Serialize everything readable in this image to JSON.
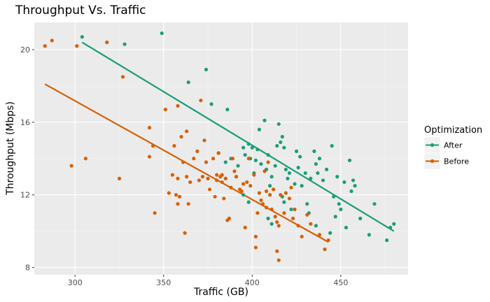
{
  "chart_data": {
    "type": "scatter",
    "title": "Throughput Vs. Traffic",
    "xlabel": "Traffic (GB)",
    "ylabel": "Throughput (Mbps)",
    "xlim": [
      277,
      488
    ],
    "ylim": [
      7.6,
      21.5
    ],
    "x_ticks": [
      300,
      350,
      400,
      450
    ],
    "y_ticks": [
      8,
      12,
      16,
      20
    ],
    "x_tick_labels": [
      "300",
      "350",
      "400",
      "450"
    ],
    "y_tick_labels": [
      "8",
      "12",
      "16",
      "20"
    ],
    "grid": true,
    "legend": {
      "title": "Optimization",
      "placement": "right"
    },
    "series": [
      {
        "name": "After",
        "color": "#1b9e77",
        "fit": {
          "x": [
            304,
            480
          ],
          "y": [
            20.4,
            10.0
          ]
        },
        "points": [
          [
            304,
            20.7
          ],
          [
            318,
            20.4
          ],
          [
            328,
            20.3
          ],
          [
            349,
            20.9
          ],
          [
            364,
            18.2
          ],
          [
            374,
            18.9
          ],
          [
            377,
            17.0
          ],
          [
            386,
            16.7
          ],
          [
            395,
            14.6
          ],
          [
            396,
            14.2
          ],
          [
            398,
            14.8
          ],
          [
            399,
            14.0
          ],
          [
            400,
            14.6
          ],
          [
            401,
            13.2
          ],
          [
            402,
            13.9
          ],
          [
            403,
            14.5
          ],
          [
            404,
            15.6
          ],
          [
            405,
            13.7
          ],
          [
            407,
            16.1
          ],
          [
            408,
            13.4
          ],
          [
            409,
            14.2
          ],
          [
            410,
            12.5
          ],
          [
            411,
            13.0
          ],
          [
            412,
            12.3
          ],
          [
            413,
            13.6
          ],
          [
            414,
            14.7
          ],
          [
            415,
            15.9
          ],
          [
            416,
            14.9
          ],
          [
            417,
            15.2
          ],
          [
            418,
            14.6
          ],
          [
            419,
            13.4
          ],
          [
            420,
            12.9
          ],
          [
            421,
            13.2
          ],
          [
            422,
            11.2
          ],
          [
            424,
            12.6
          ],
          [
            425,
            14.4
          ],
          [
            426,
            13.5
          ],
          [
            427,
            14.1
          ],
          [
            428,
            12.5
          ],
          [
            430,
            13.2
          ],
          [
            432,
            11.0
          ],
          [
            433,
            12.9
          ],
          [
            435,
            14.4
          ],
          [
            436,
            13.7
          ],
          [
            437,
            13.2
          ],
          [
            438,
            14.0
          ],
          [
            440,
            12.8
          ],
          [
            442,
            13.4
          ],
          [
            445,
            14.7
          ],
          [
            446,
            11.9
          ],
          [
            448,
            13.0
          ],
          [
            449,
            11.5
          ],
          [
            450,
            11.2
          ],
          [
            452,
            12.7
          ],
          [
            453,
            10.2
          ],
          [
            455,
            13.9
          ],
          [
            456,
            12.2
          ],
          [
            457,
            12.8
          ],
          [
            458,
            12.5
          ],
          [
            461,
            10.7
          ],
          [
            466,
            9.8
          ],
          [
            469,
            11.5
          ],
          [
            476,
            9.5
          ],
          [
            478,
            10.2
          ],
          [
            480,
            10.4
          ],
          [
            395,
            12.0
          ],
          [
            398,
            11.6
          ],
          [
            409,
            10.7
          ],
          [
            411,
            10.4
          ],
          [
            417,
            11.9
          ],
          [
            418,
            11.6
          ],
          [
            431,
            11.5
          ],
          [
            436,
            10.3
          ],
          [
            444,
            9.9
          ],
          [
            447,
            10.8
          ],
          [
            381,
            14.3
          ],
          [
            388,
            14.0
          ],
          [
            392,
            13.6
          ],
          [
            385,
            13.8
          ]
        ]
      },
      {
        "name": "Before",
        "color": "#d95f02",
        "fit": {
          "x": [
            283,
            443
          ],
          "y": [
            18.1,
            9.4
          ]
        },
        "points": [
          [
            283,
            20.2
          ],
          [
            287,
            20.5
          ],
          [
            301,
            20.2
          ],
          [
            318,
            20.4
          ],
          [
            298,
            13.6
          ],
          [
            306,
            14.0
          ],
          [
            325,
            12.9
          ],
          [
            327,
            18.5
          ],
          [
            342,
            15.7
          ],
          [
            342,
            14.1
          ],
          [
            344,
            14.7
          ],
          [
            345,
            11.0
          ],
          [
            351,
            16.7
          ],
          [
            353,
            12.1
          ],
          [
            355,
            13.1
          ],
          [
            356,
            14.7
          ],
          [
            357,
            12.0
          ],
          [
            358,
            16.9
          ],
          [
            358,
            11.5
          ],
          [
            358,
            12.9
          ],
          [
            359,
            11.9
          ],
          [
            360,
            15.2
          ],
          [
            361,
            13.8
          ],
          [
            362,
            9.9
          ],
          [
            363,
            15.5
          ],
          [
            363,
            13.0
          ],
          [
            364,
            11.5
          ],
          [
            365,
            12.7
          ],
          [
            367,
            14.0
          ],
          [
            369,
            14.4
          ],
          [
            370,
            12.8
          ],
          [
            371,
            17.2
          ],
          [
            372,
            13.0
          ],
          [
            373,
            15.0
          ],
          [
            374,
            13.8
          ],
          [
            375,
            12.9
          ],
          [
            376,
            12.3
          ],
          [
            378,
            14.0
          ],
          [
            379,
            11.9
          ],
          [
            380,
            13.1
          ],
          [
            380,
            12.8
          ],
          [
            381,
            14.3
          ],
          [
            382,
            13.0
          ],
          [
            383,
            13.1
          ],
          [
            383,
            12.7
          ],
          [
            384,
            11.8
          ],
          [
            385,
            12.9
          ],
          [
            386,
            10.6
          ],
          [
            387,
            10.7
          ],
          [
            388,
            12.4
          ],
          [
            389,
            14.0
          ],
          [
            390,
            13.3
          ],
          [
            391,
            13.0
          ],
          [
            393,
            12.3
          ],
          [
            394,
            12.2
          ],
          [
            395,
            12.6
          ],
          [
            396,
            10.2
          ],
          [
            397,
            12.7
          ],
          [
            398,
            14.0
          ],
          [
            399,
            12.5
          ],
          [
            401,
            13.1
          ],
          [
            402,
            9.7
          ],
          [
            402,
            9.1
          ],
          [
            403,
            11.0
          ],
          [
            404,
            12.1
          ],
          [
            405,
            11.7
          ],
          [
            406,
            11.5
          ],
          [
            407,
            13.3
          ],
          [
            408,
            11.3
          ],
          [
            408,
            12.2
          ],
          [
            409,
            13.8
          ],
          [
            410,
            12.0
          ],
          [
            411,
            11.2
          ],
          [
            412,
            12.3
          ],
          [
            413,
            10.8
          ],
          [
            414,
            10.5
          ],
          [
            414,
            8.9
          ],
          [
            415,
            8.4
          ],
          [
            415,
            10.3
          ],
          [
            416,
            12.0
          ],
          [
            418,
            11.0
          ],
          [
            419,
            12.1
          ],
          [
            421,
            11.8
          ],
          [
            422,
            12.4
          ],
          [
            423,
            10.7
          ],
          [
            424,
            11.2
          ],
          [
            426,
            10.3
          ],
          [
            428,
            9.7
          ],
          [
            431,
            10.9
          ],
          [
            433,
            10.4
          ],
          [
            438,
            9.8
          ],
          [
            441,
            9.0
          ],
          [
            443,
            9.5
          ]
        ]
      }
    ]
  }
}
